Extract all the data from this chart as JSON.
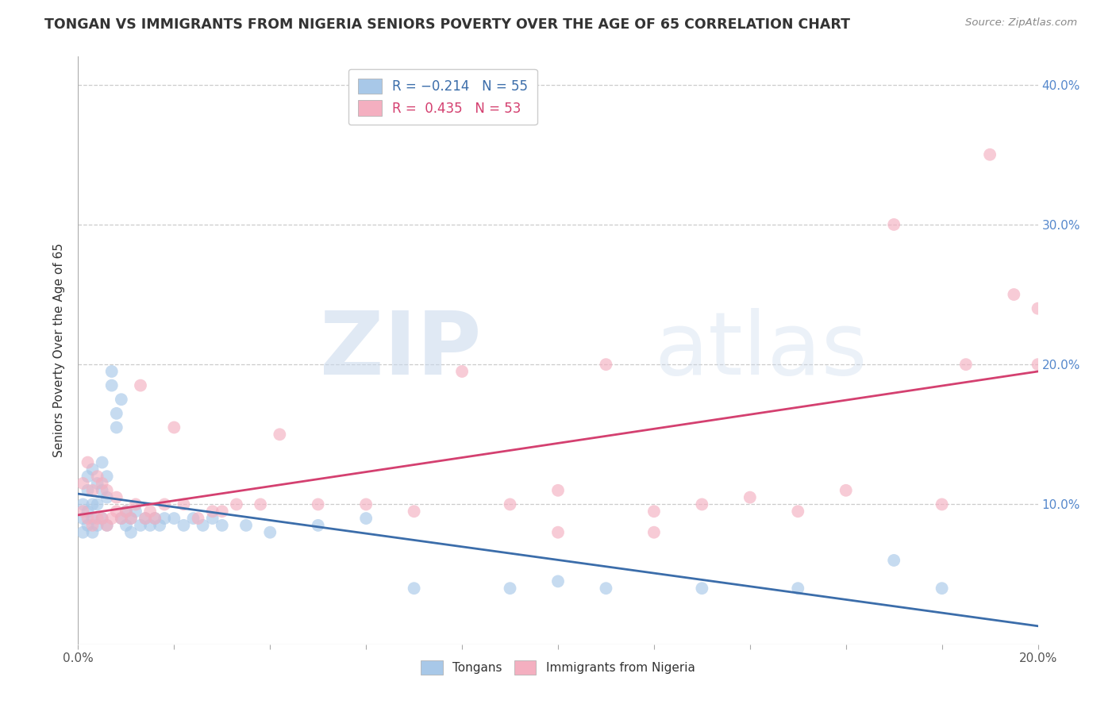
{
  "title": "TONGAN VS IMMIGRANTS FROM NIGERIA SENIORS POVERTY OVER THE AGE OF 65 CORRELATION CHART",
  "source": "Source: ZipAtlas.com",
  "ylabel": "Seniors Poverty Over the Age of 65",
  "xmin": 0.0,
  "xmax": 0.2,
  "ymin": 0.0,
  "ymax": 0.42,
  "yticks": [
    0.1,
    0.2,
    0.3,
    0.4
  ],
  "ytick_labels": [
    "10.0%",
    "20.0%",
    "30.0%",
    "40.0%"
  ],
  "legend_labels_bottom": [
    "Tongans",
    "Immigrants from Nigeria"
  ],
  "blue_color": "#a8c8e8",
  "pink_color": "#f4afc0",
  "blue_line_color": "#3b6daa",
  "pink_line_color": "#d44070",
  "background_color": "#ffffff",
  "grid_color": "#cccccc",
  "title_color": "#333333",
  "tongan_x": [
    0.001,
    0.001,
    0.001,
    0.002,
    0.002,
    0.002,
    0.002,
    0.003,
    0.003,
    0.003,
    0.003,
    0.004,
    0.004,
    0.004,
    0.005,
    0.005,
    0.005,
    0.006,
    0.006,
    0.006,
    0.007,
    0.007,
    0.008,
    0.008,
    0.009,
    0.009,
    0.01,
    0.01,
    0.011,
    0.011,
    0.012,
    0.013,
    0.014,
    0.015,
    0.016,
    0.017,
    0.018,
    0.02,
    0.022,
    0.024,
    0.026,
    0.028,
    0.03,
    0.035,
    0.04,
    0.05,
    0.06,
    0.07,
    0.09,
    0.1,
    0.11,
    0.13,
    0.15,
    0.17,
    0.18
  ],
  "tongan_y": [
    0.1,
    0.09,
    0.08,
    0.12,
    0.11,
    0.095,
    0.085,
    0.125,
    0.1,
    0.09,
    0.08,
    0.115,
    0.1,
    0.085,
    0.13,
    0.11,
    0.09,
    0.12,
    0.105,
    0.085,
    0.195,
    0.185,
    0.165,
    0.155,
    0.175,
    0.09,
    0.095,
    0.085,
    0.09,
    0.08,
    0.095,
    0.085,
    0.09,
    0.085,
    0.09,
    0.085,
    0.09,
    0.09,
    0.085,
    0.09,
    0.085,
    0.09,
    0.085,
    0.085,
    0.08,
    0.085,
    0.09,
    0.04,
    0.04,
    0.045,
    0.04,
    0.04,
    0.04,
    0.06,
    0.04
  ],
  "nigeria_x": [
    0.001,
    0.001,
    0.002,
    0.002,
    0.003,
    0.003,
    0.004,
    0.004,
    0.005,
    0.005,
    0.006,
    0.006,
    0.007,
    0.008,
    0.008,
    0.009,
    0.01,
    0.011,
    0.012,
    0.013,
    0.014,
    0.015,
    0.016,
    0.018,
    0.02,
    0.022,
    0.025,
    0.028,
    0.03,
    0.033,
    0.038,
    0.042,
    0.05,
    0.06,
    0.07,
    0.08,
    0.09,
    0.1,
    0.11,
    0.12,
    0.13,
    0.14,
    0.15,
    0.16,
    0.17,
    0.18,
    0.185,
    0.19,
    0.195,
    0.2,
    0.2,
    0.1,
    0.12
  ],
  "nigeria_y": [
    0.115,
    0.095,
    0.13,
    0.09,
    0.11,
    0.085,
    0.12,
    0.09,
    0.115,
    0.09,
    0.11,
    0.085,
    0.09,
    0.095,
    0.105,
    0.09,
    0.095,
    0.09,
    0.1,
    0.185,
    0.09,
    0.095,
    0.09,
    0.1,
    0.155,
    0.1,
    0.09,
    0.095,
    0.095,
    0.1,
    0.1,
    0.15,
    0.1,
    0.1,
    0.095,
    0.195,
    0.1,
    0.11,
    0.2,
    0.095,
    0.1,
    0.105,
    0.095,
    0.11,
    0.3,
    0.1,
    0.2,
    0.35,
    0.25,
    0.24,
    0.2,
    0.08,
    0.08
  ]
}
